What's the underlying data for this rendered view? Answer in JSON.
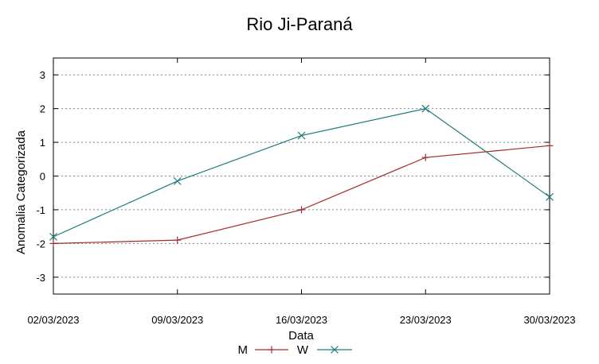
{
  "chart_data": {
    "type": "line",
    "title": "Rio Ji-Paraná",
    "xlabel": "Data",
    "ylabel": "Anomalia Categorizada",
    "categories": [
      "02/03/2023",
      "09/03/2023",
      "16/03/2023",
      "23/03/2023",
      "30/03/2023"
    ],
    "ylim": [
      -3.5,
      3.5
    ],
    "yticks": [
      "-3",
      "-2",
      "-1",
      "0",
      "1",
      "2",
      "3"
    ],
    "grid": true,
    "legend_position": "bottom-center",
    "series": [
      {
        "name": "M",
        "values": [
          -2.0,
          -1.9,
          -1.0,
          0.55,
          0.9
        ],
        "color": "#a52a2a",
        "marker": "plus"
      },
      {
        "name": "W",
        "values": [
          -1.8,
          -0.15,
          1.2,
          2.0,
          -0.62
        ],
        "color": "#1f7a7a",
        "marker": "cross"
      }
    ]
  }
}
